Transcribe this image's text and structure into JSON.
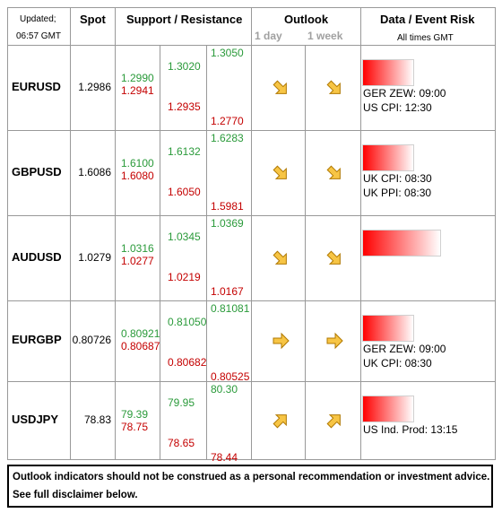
{
  "header": {
    "updated": "Updated;",
    "time": "06:57 GMT",
    "spot": "Spot",
    "support_resistance": "Support / Resistance",
    "outlook": "Outlook",
    "day": "1 day",
    "week": "1 week",
    "data_event": "Data / Event Risk",
    "times": "All times GMT"
  },
  "rows": [
    {
      "pair": "EURUSD",
      "spot": "1.2986",
      "levels": [
        [
          "1.2990",
          "1.2941"
        ],
        [
          "1.3020",
          "1.2935"
        ],
        [
          "1.3050",
          "1.2770"
        ]
      ],
      "outlook": [
        "down-right",
        "down-right"
      ],
      "risk_bar": "short",
      "events": [
        "GER ZEW: 09:00",
        "US CPI: 12:30"
      ]
    },
    {
      "pair": "GBPUSD",
      "spot": "1.6086",
      "levels": [
        [
          "1.6100",
          "1.6080"
        ],
        [
          "1.6132",
          "1.6050"
        ],
        [
          "1.6283",
          "1.5981"
        ]
      ],
      "outlook": [
        "down-right",
        "down-right"
      ],
      "risk_bar": "short",
      "events": [
        "UK CPI: 08:30",
        "UK PPI: 08:30"
      ]
    },
    {
      "pair": "AUDUSD",
      "spot": "1.0279",
      "levels": [
        [
          "1.0316",
          "1.0277"
        ],
        [
          "1.0345",
          "1.0219"
        ],
        [
          "1.0369",
          "1.0167"
        ]
      ],
      "outlook": [
        "down-right",
        "down-right"
      ],
      "risk_bar": "long",
      "events": []
    },
    {
      "pair": "EURGBP",
      "spot": "0.80726",
      "levels": [
        [
          "0.80921",
          "0.80687"
        ],
        [
          "0.81050",
          "0.80682"
        ],
        [
          "0.81081",
          "0.80525"
        ]
      ],
      "outlook": [
        "right",
        "right"
      ],
      "risk_bar": "short",
      "events": [
        "GER ZEW: 09:00",
        "UK CPI: 08:30"
      ]
    },
    {
      "pair": "USDJPY",
      "spot": "78.83",
      "levels": [
        [
          "79.39",
          "78.75"
        ],
        [
          "79.95",
          "78.65"
        ],
        [
          "80.30",
          "78.44"
        ]
      ],
      "outlook": [
        "up-right",
        "up-right"
      ],
      "risk_bar": "short",
      "events": [
        "US Ind. Prod: 13:15"
      ]
    }
  ],
  "footer": [
    "Outlook indicators should not be construed as a personal recommendation or investment advice.",
    "See full disclaimer below."
  ]
}
